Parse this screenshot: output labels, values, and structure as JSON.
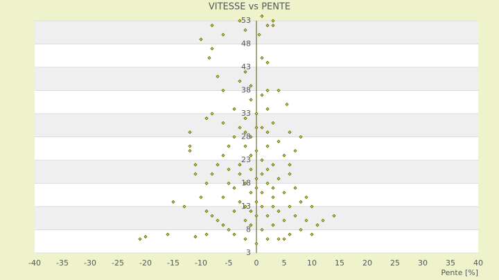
{
  "chart_data": {
    "type": "scatter",
    "title": "VITESSE vs PENTE",
    "x_label": "Pente [%]",
    "x": [
      -21,
      -20,
      -16,
      -11,
      -9,
      -10,
      -8,
      -8,
      -8.5,
      -7,
      -6,
      -3,
      -2,
      2,
      3,
      1,
      3,
      0.5,
      1,
      2,
      5.5,
      4,
      2,
      -1,
      -2,
      -3,
      -6,
      -8,
      -9,
      -12,
      -12,
      -11,
      -15,
      -13,
      -10,
      -9,
      -8,
      -7,
      -5,
      -12,
      -11,
      8,
      7,
      6,
      9,
      10,
      12,
      14,
      11,
      10,
      8,
      6,
      4,
      2,
      0,
      -2,
      -4,
      -6,
      -3,
      -4,
      -5,
      -6,
      -7,
      -8,
      -9,
      -5,
      -6,
      -3,
      -4,
      -2,
      -1,
      1,
      3,
      5,
      7,
      4,
      6,
      8,
      3,
      5,
      7,
      2,
      4,
      6,
      1,
      3,
      5,
      0,
      2,
      4,
      -1,
      1,
      3,
      -2,
      0,
      2,
      -4,
      -1,
      1,
      -3,
      -1,
      0,
      -2,
      -1,
      0,
      1,
      -2,
      2,
      0,
      -1,
      -2,
      1,
      2,
      -3,
      0,
      1,
      -4,
      -5,
      3,
      -2,
      0,
      2,
      -6,
      6,
      9,
      5,
      -1,
      3
    ],
    "values": [
      6,
      6.5,
      7,
      6.5,
      7,
      49,
      52,
      47,
      45,
      41,
      50,
      53,
      51,
      52,
      53,
      54,
      52,
      50,
      45,
      44,
      35,
      38,
      38,
      39,
      42,
      40,
      38,
      33,
      32,
      29,
      25,
      20,
      14,
      13,
      15,
      12,
      11,
      10,
      8,
      26,
      22,
      28,
      25,
      22,
      15,
      13,
      10,
      11,
      9,
      7,
      8,
      7,
      6,
      6,
      5,
      6,
      7,
      9,
      30,
      28,
      26,
      24,
      22,
      20,
      18,
      18,
      15,
      14,
      12,
      10,
      9,
      8,
      9,
      10,
      11,
      12,
      13,
      14,
      15,
      16,
      17,
      18,
      19,
      20,
      20,
      22,
      24,
      25,
      26,
      27,
      28,
      30,
      31,
      32,
      33,
      34,
      34,
      36,
      37,
      22,
      21,
      19,
      18,
      16,
      14,
      13,
      13,
      11,
      11,
      24,
      26,
      23,
      21,
      20,
      17,
      16,
      17,
      21,
      17,
      29,
      30,
      29,
      31,
      29,
      10,
      6,
      12,
      13
    ],
    "color": "#5a5a00",
    "fill": "#d8d840",
    "xlim": [
      -40,
      40
    ],
    "xticks": [
      -40,
      -35,
      -30,
      -25,
      -20,
      -15,
      -10,
      -5,
      0,
      5,
      10,
      15,
      20,
      25,
      30,
      35,
      40
    ],
    "ylim": [
      3,
      53
    ],
    "yticks": [
      3,
      8,
      13,
      18,
      23,
      28,
      33,
      38,
      43,
      48,
      53
    ],
    "grid": true
  }
}
